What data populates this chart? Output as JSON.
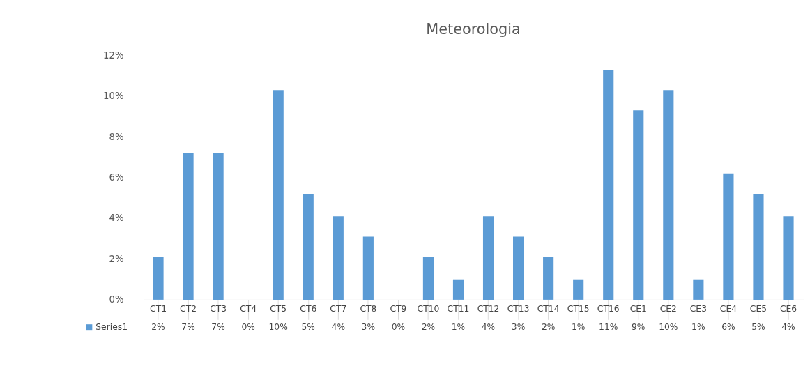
{
  "chart_data": {
    "type": "bar",
    "title": "Meteorologia",
    "categories": [
      "CT1",
      "CT2",
      "CT3",
      "CT4",
      "CT5",
      "CT6",
      "CT7",
      "CT8",
      "CT9",
      "CT10",
      "CT11",
      "CT12",
      "CT13",
      "CT14",
      "CT15",
      "CT16",
      "CE1",
      "CE2",
      "CE3",
      "CE4",
      "CE5",
      "CE6"
    ],
    "series": [
      {
        "name": "Series1",
        "color": "#5b9bd5",
        "values": [
          2.1,
          7.2,
          7.2,
          0,
          10.3,
          5.2,
          4.1,
          3.1,
          0,
          2.1,
          1.0,
          4.1,
          3.1,
          2.1,
          1.0,
          11.3,
          9.3,
          10.3,
          1.0,
          6.2,
          5.2,
          4.1
        ],
        "value_labels": [
          "2%",
          "7%",
          "7%",
          "0%",
          "10%",
          "5%",
          "4%",
          "3%",
          "0%",
          "2%",
          "1%",
          "4%",
          "3%",
          "2%",
          "1%",
          "11%",
          "9%",
          "10%",
          "1%",
          "6%",
          "5%",
          "4%"
        ]
      }
    ],
    "ylim": [
      0,
      12
    ],
    "yticks": [
      {
        "value": 0,
        "label": "0%"
      },
      {
        "value": 2,
        "label": "2%"
      },
      {
        "value": 4,
        "label": "4%"
      },
      {
        "value": 6,
        "label": "6%"
      },
      {
        "value": 8,
        "label": "8%"
      },
      {
        "value": 10,
        "label": "10%"
      },
      {
        "value": 12,
        "label": "12%"
      }
    ],
    "grid": false,
    "legend": "bottom"
  }
}
